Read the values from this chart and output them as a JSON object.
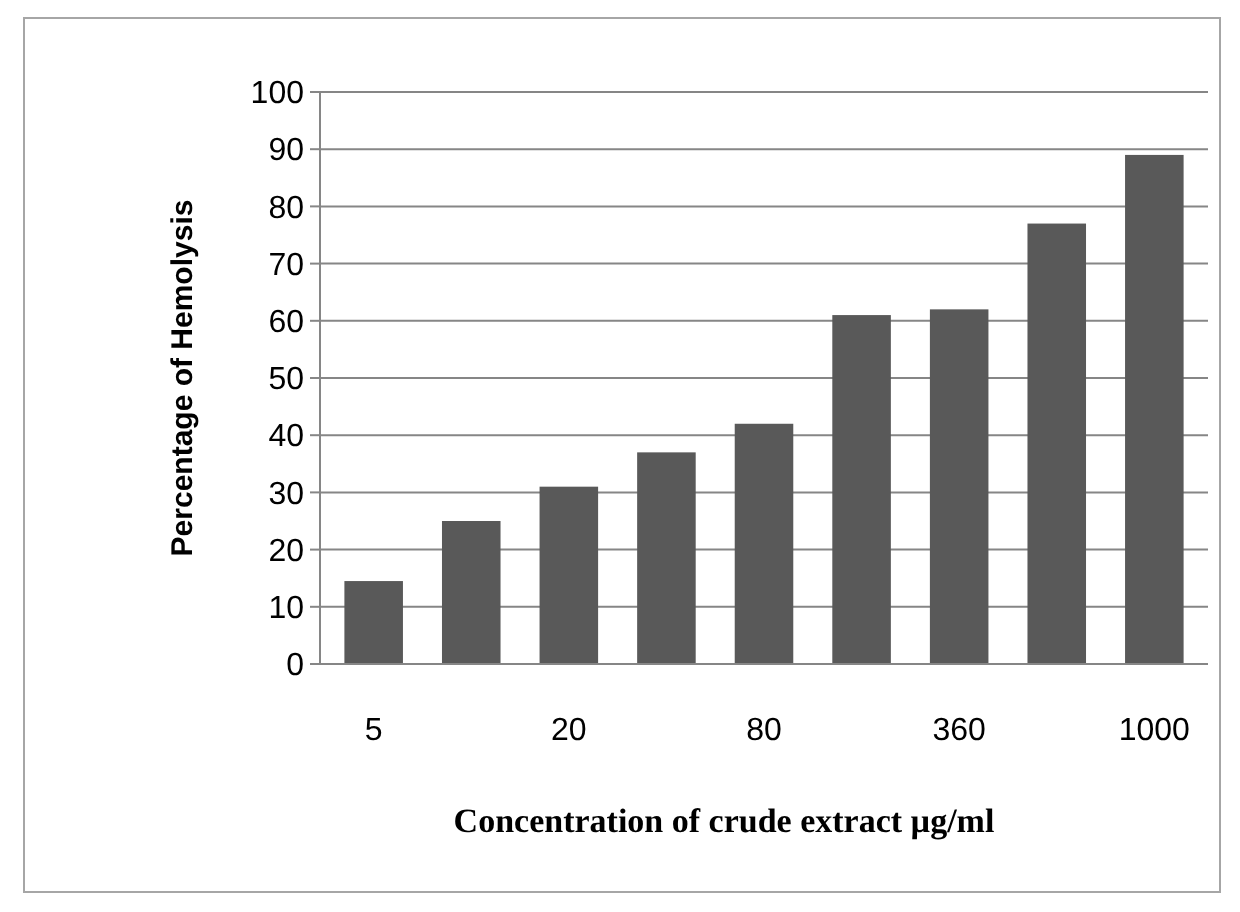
{
  "chart_data": {
    "type": "bar",
    "xlabel": "Concentration of crude extract µg/ml",
    "ylabel": "Percentage of Hemolysis",
    "categories": [
      "5",
      null,
      "20",
      null,
      "80",
      null,
      "360",
      null,
      "1000"
    ],
    "values": [
      14.5,
      25,
      31,
      37,
      42,
      61,
      62,
      77,
      89
    ],
    "color": "#595959",
    "ylim": [
      0,
      100
    ],
    "yticks": [
      0,
      10,
      20,
      30,
      40,
      50,
      60,
      70,
      80,
      90,
      100
    ],
    "grid": "y"
  }
}
